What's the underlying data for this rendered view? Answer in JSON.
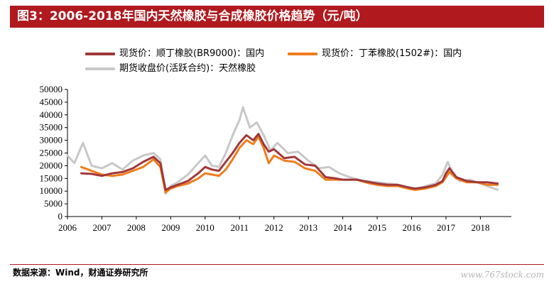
{
  "header": {
    "title": "图3：2006-2018年国内天然橡胶与合成橡胶价格趋势（元/吨）"
  },
  "footer": {
    "source": "数据来源：Wind，财通证券研究所",
    "watermark": "www.767stock.com"
  },
  "colors": {
    "title_bg": "#b0191e",
    "series_br": "#a0383a",
    "series_sbr": "#ee7d1c",
    "series_nr": "#c8c8c8"
  },
  "chart_data": {
    "type": "line",
    "title": "",
    "xlabel": "",
    "ylabel": "",
    "ylim": [
      0,
      50000
    ],
    "xlim": [
      2006,
      2018.9
    ],
    "y_ticks": [
      0,
      5000,
      10000,
      15000,
      20000,
      25000,
      30000,
      35000,
      40000,
      45000,
      50000
    ],
    "x_ticks": [
      2006,
      2007,
      2008,
      2009,
      2010,
      2011,
      2012,
      2013,
      2014,
      2015,
      2016,
      2017,
      2018
    ],
    "grid": false,
    "legend_position": "top",
    "series": [
      {
        "name": "现货价：顺丁橡胶(BR9000)：国内",
        "color_key": "series_br",
        "x": [
          2006.4,
          2006.7,
          2007.0,
          2007.3,
          2007.6,
          2007.9,
          2008.2,
          2008.5,
          2008.7,
          2008.85,
          2009.0,
          2009.2,
          2009.5,
          2009.8,
          2010.0,
          2010.2,
          2010.4,
          2010.6,
          2010.8,
          2011.0,
          2011.2,
          2011.4,
          2011.55,
          2011.7,
          2011.85,
          2012.0,
          2012.3,
          2012.6,
          2012.9,
          2013.2,
          2013.5,
          2013.8,
          2014.0,
          2014.4,
          2014.8,
          2015.0,
          2015.3,
          2015.6,
          2015.9,
          2016.1,
          2016.4,
          2016.7,
          2016.9,
          2017.0,
          2017.1,
          2017.3,
          2017.6,
          2017.9,
          2018.2,
          2018.5
        ],
        "values": [
          17000,
          16800,
          16000,
          17000,
          17500,
          19000,
          21500,
          23500,
          21000,
          10500,
          11500,
          12500,
          14000,
          17000,
          19500,
          18500,
          18000,
          21500,
          25000,
          29000,
          32000,
          30000,
          32500,
          28500,
          25500,
          26500,
          23000,
          23500,
          20500,
          20000,
          15500,
          15000,
          14500,
          14500,
          13500,
          13000,
          12500,
          12500,
          11500,
          11000,
          11500,
          12500,
          14000,
          17000,
          19000,
          15500,
          14000,
          13500,
          13500,
          13000
        ]
      },
      {
        "name": "现货价：丁苯橡胶(1502#)：国内",
        "color_key": "series_sbr",
        "x": [
          2006.4,
          2006.7,
          2007.0,
          2007.3,
          2007.6,
          2007.9,
          2008.2,
          2008.5,
          2008.7,
          2008.85,
          2009.0,
          2009.2,
          2009.5,
          2009.8,
          2010.0,
          2010.2,
          2010.4,
          2010.6,
          2010.8,
          2011.0,
          2011.2,
          2011.4,
          2011.55,
          2011.7,
          2011.85,
          2012.0,
          2012.3,
          2012.6,
          2012.9,
          2013.2,
          2013.5,
          2013.8,
          2014.0,
          2014.4,
          2014.8,
          2015.0,
          2015.3,
          2015.6,
          2015.9,
          2016.1,
          2016.4,
          2016.7,
          2016.9,
          2017.0,
          2017.1,
          2017.3,
          2017.6,
          2017.9,
          2018.2,
          2018.5
        ],
        "values": [
          19500,
          18000,
          16500,
          16000,
          16500,
          18000,
          19500,
          22500,
          19500,
          9500,
          11000,
          12000,
          13000,
          15000,
          17000,
          16500,
          16000,
          18500,
          22500,
          27000,
          30000,
          28500,
          31500,
          27000,
          21000,
          24000,
          22000,
          21500,
          19000,
          18000,
          14500,
          14500,
          14500,
          14500,
          13000,
          12500,
          12000,
          12000,
          11000,
          10500,
          11000,
          12000,
          13500,
          15500,
          17500,
          15000,
          13500,
          13500,
          12500,
          12500
        ]
      },
      {
        "name": "期货收盘价(活跃合约)：天然橡胶",
        "color_key": "series_nr",
        "x": [
          2006.0,
          2006.2,
          2006.45,
          2006.7,
          2007.0,
          2007.3,
          2007.6,
          2007.9,
          2008.2,
          2008.5,
          2008.7,
          2008.85,
          2009.0,
          2009.2,
          2009.5,
          2009.8,
          2010.0,
          2010.2,
          2010.4,
          2010.6,
          2010.8,
          2011.0,
          2011.1,
          2011.3,
          2011.5,
          2011.7,
          2011.9,
          2012.1,
          2012.4,
          2012.7,
          2013.0,
          2013.3,
          2013.6,
          2013.9,
          2014.2,
          2014.6,
          2015.0,
          2015.3,
          2015.6,
          2015.9,
          2016.1,
          2016.4,
          2016.7,
          2016.9,
          2017.05,
          2017.2,
          2017.4,
          2017.7,
          2018.0,
          2018.3,
          2018.5
        ],
        "values": [
          24000,
          21000,
          29000,
          20000,
          19000,
          21000,
          18500,
          22000,
          24000,
          25000,
          22500,
          9000,
          12000,
          13500,
          16500,
          21000,
          24000,
          20000,
          19500,
          25000,
          32000,
          38000,
          43000,
          35000,
          37000,
          32000,
          26000,
          29000,
          25000,
          25500,
          22000,
          19000,
          19500,
          17000,
          15500,
          14000,
          13500,
          13000,
          12500,
          11000,
          10500,
          12000,
          13000,
          16500,
          21500,
          17000,
          14000,
          14500,
          13000,
          11500,
          10500
        ]
      }
    ]
  }
}
